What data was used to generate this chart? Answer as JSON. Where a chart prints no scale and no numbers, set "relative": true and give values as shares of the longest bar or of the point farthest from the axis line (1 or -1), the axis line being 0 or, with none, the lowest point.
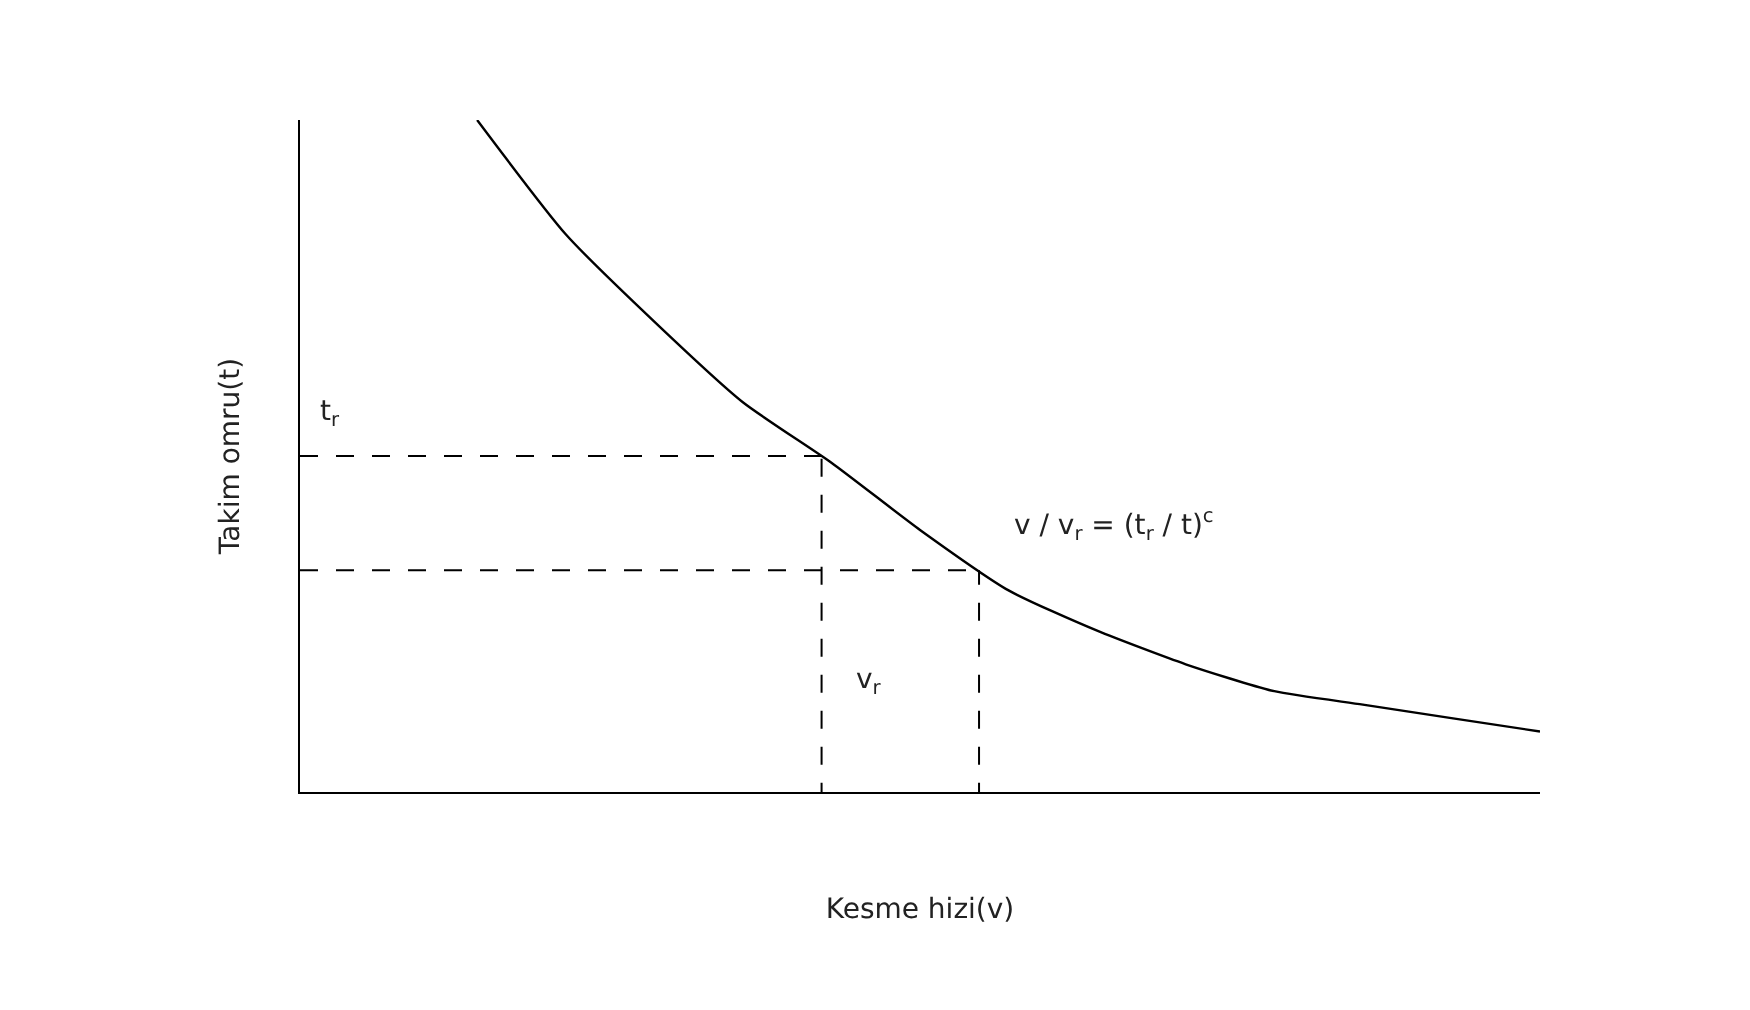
{
  "chart_data": {
    "type": "line",
    "relative": true,
    "xlabel": "Kesme hizi(v)",
    "ylabel": "Takim omru(t)",
    "categories": [
      null,
      null,
      null,
      null,
      null,
      null,
      null,
      null,
      null,
      null,
      null,
      null,
      null,
      null,
      null
    ],
    "series": [
      {
        "color": "#000000",
        "values": [
          null,
          null,
          1.0,
          0.83,
          0.7,
          0.58,
          0.49,
          0.39,
          0.3,
          0.24,
          0.19,
          0.15,
          0.13,
          0.11,
          0.09
        ]
      }
    ],
    "ref_lines": [
      {
        "axis": "y",
        "value": 0.5,
        "label": "t$_{r}$",
        "line_style": "dashed",
        "color": "#000000"
      },
      {
        "axis": "y",
        "value": 0.33,
        "line_style": "dashed",
        "color": "#000000"
      }
    ],
    "annotations": [
      "v / v$_{r}$ = (t$_{r}$ / t)$^{c}$",
      "v$_{r}$"
    ],
    "marker": "none",
    "line_style": "solid"
  }
}
